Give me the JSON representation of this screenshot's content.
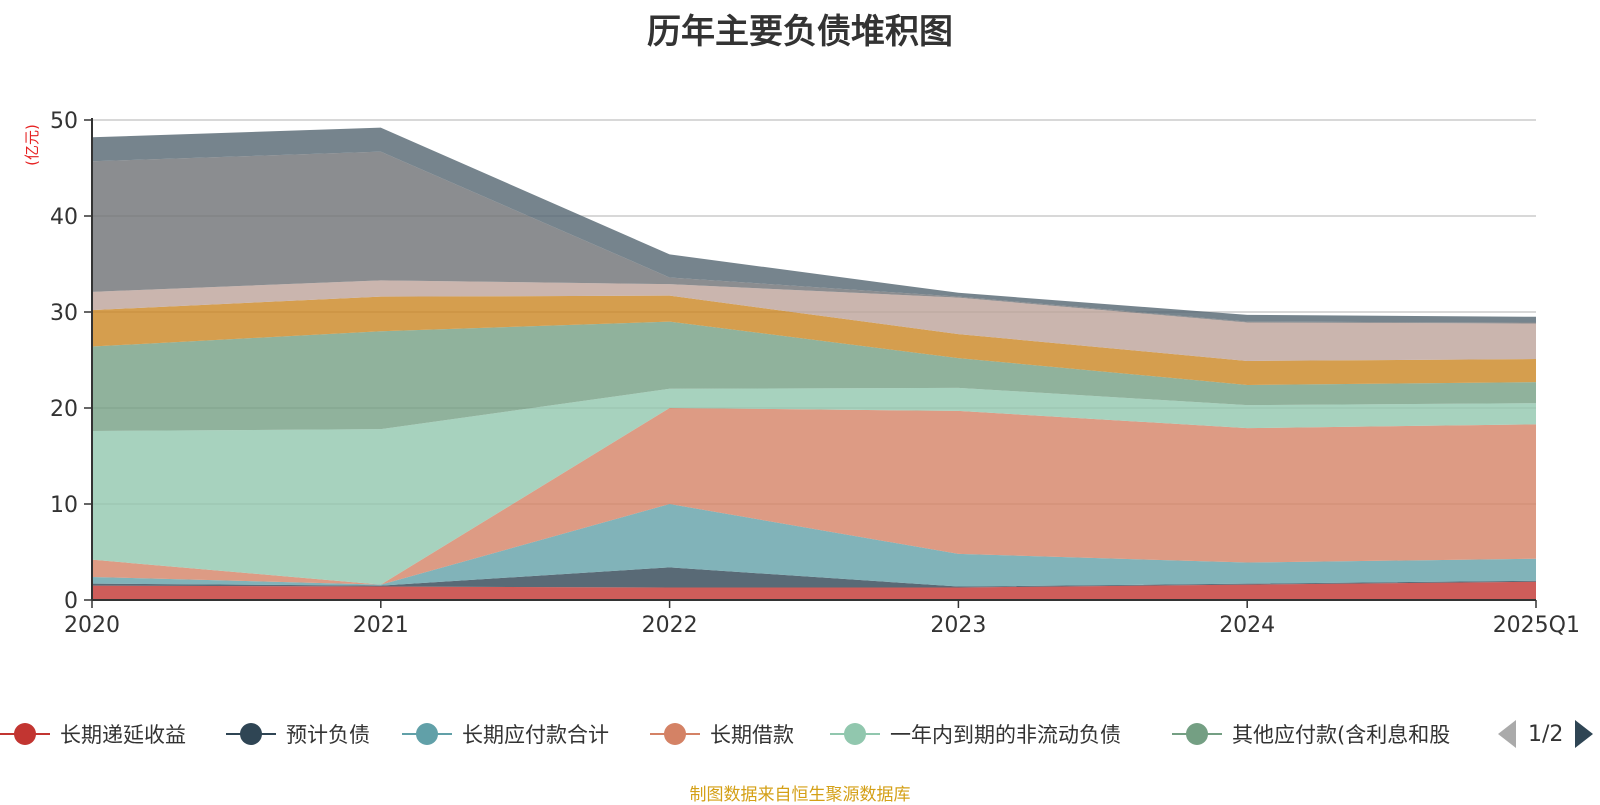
{
  "chart_data": {
    "type": "area",
    "stacked": true,
    "title": "历年主要负债堆积图",
    "unit": "(亿元)",
    "categories": [
      "2020",
      "2021",
      "2022",
      "2023",
      "2024",
      "2025Q1"
    ],
    "ylim": [
      0,
      50
    ],
    "yticks": [
      0,
      10,
      20,
      30,
      40,
      50
    ],
    "grid": true,
    "series": [
      {
        "name": "长期递延收益",
        "color": "#c23531",
        "values": [
          1.5,
          1.4,
          1.3,
          1.3,
          1.6,
          1.9
        ]
      },
      {
        "name": "预计负债",
        "color": "#2f4554",
        "values": [
          0.2,
          0.1,
          2.1,
          0.1,
          0.1,
          0.1
        ]
      },
      {
        "name": "长期应付款合计",
        "color": "#61a0a8",
        "values": [
          0.7,
          0.1,
          6.6,
          3.4,
          2.2,
          2.3
        ]
      },
      {
        "name": "长期借款",
        "color": "#d48265",
        "values": [
          1.8,
          0.0,
          10.0,
          14.9,
          14.0,
          14.0
        ]
      },
      {
        "name": "一年内到期的非流动负债",
        "color": "#91c7ae",
        "values": [
          13.4,
          16.2,
          2.0,
          2.4,
          2.4,
          2.2
        ]
      },
      {
        "name": "其他应付款(含利息和股",
        "color": "#749f83",
        "values": [
          8.8,
          10.2,
          7.0,
          3.1,
          2.1,
          2.2
        ]
      },
      {
        "name": "",
        "color": "#ca8622",
        "values": [
          3.8,
          3.6,
          2.7,
          2.5,
          2.5,
          2.4
        ]
      },
      {
        "name": "",
        "color": "#bda29a",
        "values": [
          1.9,
          1.7,
          1.2,
          3.8,
          4.0,
          3.7
        ]
      },
      {
        "name": "",
        "color": "#6e7074",
        "values": [
          13.6,
          13.4,
          0.7,
          0.1,
          0.1,
          0.1
        ]
      },
      {
        "name": "",
        "color": "#546570",
        "values": [
          2.5,
          2.5,
          2.4,
          0.4,
          0.7,
          0.6
        ]
      }
    ]
  },
  "legend": {
    "page_indicator": "1/2"
  },
  "footer": {
    "source": "制图数据来自恒生聚源数据库"
  }
}
